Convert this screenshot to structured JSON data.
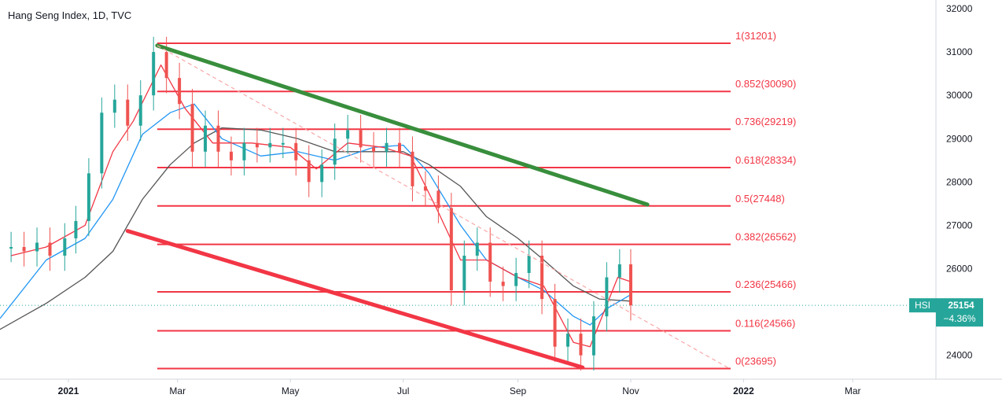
{
  "header": {
    "title": "Hang Seng Index, 1D, TVC"
  },
  "price_tag": {
    "symbol": "HSI",
    "value": "25154",
    "change": "−4.36%"
  },
  "colors": {
    "fib_line": "#f23645",
    "fib_label": "#f23645",
    "green_trend": "#388e3c",
    "red_trend": "#f23645",
    "ma_gray": "#555555",
    "ma_blue": "#2196f3",
    "ma_red": "#f23645",
    "candle_up": "#26a69a",
    "candle_down": "#ef5350",
    "dashed_trend": "#f9a8a8",
    "price_line": "#26a69a"
  },
  "chart_data": {
    "type": "line",
    "title": "Hang Seng Index, 1D, TVC",
    "y_axis_ticks": [
      32000,
      31000,
      30000,
      29000,
      28000,
      27000,
      26000,
      25000,
      24000
    ],
    "y_axis_labels": [
      "32000",
      "31000",
      "30000",
      "29000",
      "28000",
      "27000",
      "26000",
      "25000",
      "24000"
    ],
    "ylim": [
      23450,
      32200
    ],
    "x_axis_labels": [
      "2021",
      "Mar",
      "May",
      "Jul",
      "Sep",
      "Nov",
      "2022",
      "Mar"
    ],
    "x_axis_dates": [
      "2021-01-01",
      "2021-03-01",
      "2021-05-01",
      "2021-07-01",
      "2021-09-01",
      "2021-11-01",
      "2022-01-01",
      "2022-03-01"
    ],
    "xlim": [
      "2020-11-25",
      "2022-04-15"
    ],
    "fibonacci_levels": [
      {
        "ratio": "1",
        "value": 31201,
        "label": "1(31201)"
      },
      {
        "ratio": "0.852",
        "value": 30090,
        "label": "0.852(30090)"
      },
      {
        "ratio": "0.736",
        "value": 29219,
        "label": "0.736(29219)"
      },
      {
        "ratio": "0.618",
        "value": 28334,
        "label": "0.618(28334)"
      },
      {
        "ratio": "0.5",
        "value": 27448,
        "label": "0.5(27448)"
      },
      {
        "ratio": "0.382",
        "value": 26562,
        "label": "0.382(26562)"
      },
      {
        "ratio": "0.236",
        "value": 25466,
        "label": "0.236(25466)"
      },
      {
        "ratio": "0.116",
        "value": 24566,
        "label": "0.116(24566)"
      },
      {
        "ratio": "0",
        "value": 23695,
        "label": "0(23695)"
      }
    ],
    "fib_start_date": "2021-02-18",
    "fib_end_date": "2021-12-25",
    "trendlines": [
      {
        "color": "green",
        "points": [
          [
            "2021-02-18",
            31150
          ],
          [
            "2021-11-10",
            27480
          ]
        ]
      },
      {
        "color": "red",
        "points": [
          [
            "2021-02-02",
            26870
          ],
          [
            "2021-10-06",
            23720
          ]
        ]
      },
      {
        "color": "dashed",
        "points": [
          [
            "2021-02-18",
            31150
          ],
          [
            "2021-12-25",
            23680
          ]
        ]
      }
    ],
    "current_price": 25154,
    "candles": [
      [
        "2020-12-01",
        26500
      ],
      [
        "2020-12-08",
        26400
      ],
      [
        "2020-12-15",
        26600
      ],
      [
        "2020-12-22",
        26300
      ],
      [
        "2020-12-30",
        26700
      ],
      [
        "2021-01-05",
        27100
      ],
      [
        "2021-01-12",
        28200
      ],
      [
        "2021-01-19",
        29600
      ],
      [
        "2021-01-26",
        29900
      ],
      [
        "2021-02-02",
        29300
      ],
      [
        "2021-02-09",
        30000
      ],
      [
        "2021-02-16",
        31000
      ],
      [
        "2021-02-23",
        30400
      ],
      [
        "2021-03-02",
        29800
      ],
      [
        "2021-03-09",
        28700
      ],
      [
        "2021-03-16",
        29300
      ],
      [
        "2021-03-23",
        28700
      ],
      [
        "2021-03-30",
        28500
      ],
      [
        "2021-04-06",
        28900
      ],
      [
        "2021-04-13",
        28800
      ],
      [
        "2021-04-20",
        28900
      ],
      [
        "2021-04-27",
        28900
      ],
      [
        "2021-05-04",
        28500
      ],
      [
        "2021-05-11",
        28000
      ],
      [
        "2021-05-18",
        28400
      ],
      [
        "2021-05-25",
        29000
      ],
      [
        "2021-06-01",
        29200
      ],
      [
        "2021-06-08",
        28800
      ],
      [
        "2021-06-15",
        28700
      ],
      [
        "2021-06-22",
        28900
      ],
      [
        "2021-06-29",
        28700
      ],
      [
        "2021-07-06",
        27900
      ],
      [
        "2021-07-13",
        27800
      ],
      [
        "2021-07-20",
        27400
      ],
      [
        "2021-07-27",
        25500
      ],
      [
        "2021-08-03",
        26300
      ],
      [
        "2021-08-10",
        26600
      ],
      [
        "2021-08-17",
        25700
      ],
      [
        "2021-08-24",
        25600
      ],
      [
        "2021-08-31",
        25900
      ],
      [
        "2021-09-07",
        26300
      ],
      [
        "2021-09-14",
        25300
      ],
      [
        "2021-09-21",
        24200
      ],
      [
        "2021-09-28",
        24500
      ],
      [
        "2021-10-05",
        24000
      ],
      [
        "2021-10-12",
        24900
      ],
      [
        "2021-10-19",
        25800
      ],
      [
        "2021-10-26",
        26100
      ],
      [
        "2021-11-01",
        25154
      ]
    ],
    "ma_blue": [
      [
        "2020-11-25",
        24850
      ],
      [
        "2020-12-20",
        26200
      ],
      [
        "2021-01-10",
        26700
      ],
      [
        "2021-01-25",
        27600
      ],
      [
        "2021-02-10",
        29100
      ],
      [
        "2021-02-25",
        29600
      ],
      [
        "2021-03-10",
        29800
      ],
      [
        "2021-03-25",
        29000
      ],
      [
        "2021-04-15",
        28600
      ],
      [
        "2021-05-05",
        28700
      ],
      [
        "2021-05-25",
        28500
      ],
      [
        "2021-06-15",
        28800
      ],
      [
        "2021-07-01",
        28850
      ],
      [
        "2021-07-15",
        28200
      ],
      [
        "2021-08-01",
        27000
      ],
      [
        "2021-08-15",
        26200
      ],
      [
        "2021-09-01",
        25800
      ],
      [
        "2021-09-15",
        25500
      ],
      [
        "2021-10-01",
        24900
      ],
      [
        "2021-10-10",
        24700
      ],
      [
        "2021-10-20",
        25100
      ],
      [
        "2021-11-01",
        25400
      ]
    ],
    "ma_red": [
      [
        "2020-12-01",
        26300
      ],
      [
        "2020-12-20",
        26500
      ],
      [
        "2021-01-10",
        27000
      ],
      [
        "2021-01-25",
        28700
      ],
      [
        "2021-02-05",
        29400
      ],
      [
        "2021-02-20",
        30700
      ],
      [
        "2021-03-05",
        29700
      ],
      [
        "2021-03-20",
        28900
      ],
      [
        "2021-04-10",
        28900
      ],
      [
        "2021-05-01",
        28800
      ],
      [
        "2021-05-15",
        28300
      ],
      [
        "2021-06-01",
        28900
      ],
      [
        "2021-06-20",
        28800
      ],
      [
        "2021-07-05",
        28600
      ],
      [
        "2021-07-20",
        27300
      ],
      [
        "2021-08-01",
        26200
      ],
      [
        "2021-08-15",
        26200
      ],
      [
        "2021-09-01",
        25800
      ],
      [
        "2021-09-15",
        25600
      ],
      [
        "2021-10-01",
        24300
      ],
      [
        "2021-10-10",
        24200
      ],
      [
        "2021-10-25",
        25800
      ],
      [
        "2021-11-01",
        25700
      ]
    ],
    "ma_gray": [
      [
        "2020-11-25",
        24600
      ],
      [
        "2020-12-20",
        25200
      ],
      [
        "2021-01-10",
        25800
      ],
      [
        "2021-01-25",
        26400
      ],
      [
        "2021-02-10",
        27600
      ],
      [
        "2021-02-25",
        28400
      ],
      [
        "2021-03-10",
        28900
      ],
      [
        "2021-03-25",
        29250
      ],
      [
        "2021-04-15",
        29200
      ],
      [
        "2021-05-05",
        29000
      ],
      [
        "2021-05-25",
        28700
      ],
      [
        "2021-06-15",
        28700
      ],
      [
        "2021-07-01",
        28700
      ],
      [
        "2021-07-15",
        28400
      ],
      [
        "2021-08-01",
        27900
      ],
      [
        "2021-08-15",
        27200
      ],
      [
        "2021-09-01",
        26700
      ],
      [
        "2021-09-15",
        26200
      ],
      [
        "2021-10-01",
        25600
      ],
      [
        "2021-10-15",
        25300
      ],
      [
        "2021-11-01",
        25250
      ]
    ]
  }
}
